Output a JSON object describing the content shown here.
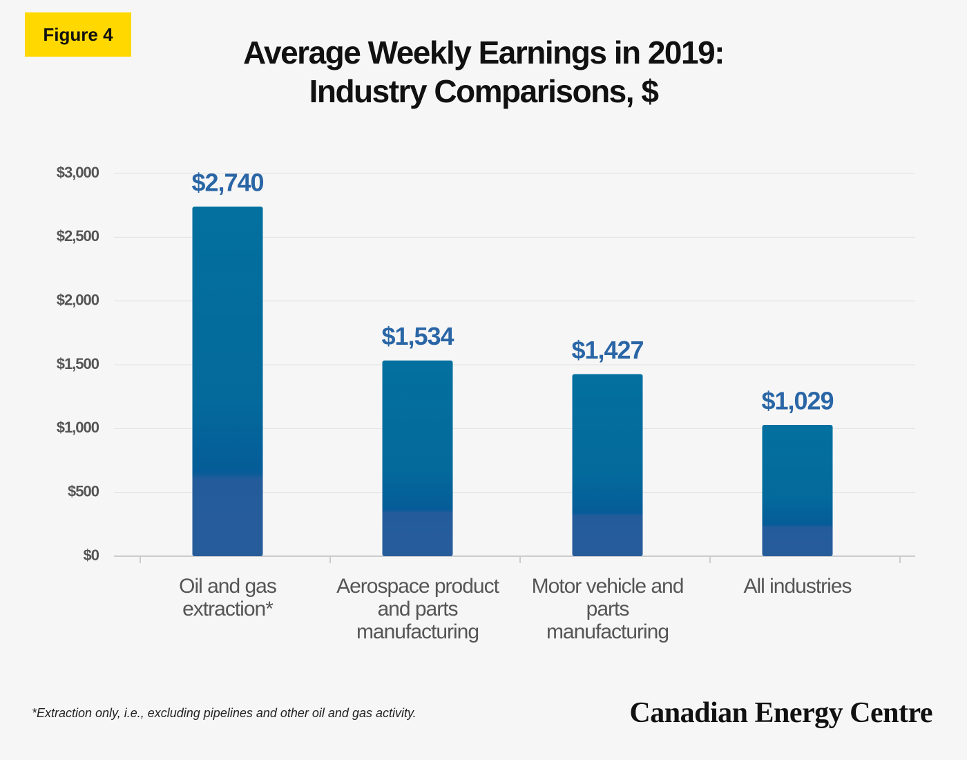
{
  "badge": "Figure 4",
  "chart_data": {
    "type": "bar",
    "title": "Average Weekly Earnings in 2019:\nIndustry Comparisons, $",
    "categories": [
      "Oil and gas extraction*",
      "Aerospace product and parts manufacturing",
      "Motor vehicle and parts manufacturing",
      "All industries"
    ],
    "values": [
      2740,
      1534,
      1427,
      1029
    ],
    "value_labels": [
      "$2,740",
      "$1,534",
      "$1,427",
      "$1,029"
    ],
    "color": "#03709f",
    "ylim": [
      0,
      3000
    ],
    "yticks": [
      {
        "value": 0,
        "label": "$0"
      },
      {
        "value": 500,
        "label": "$500"
      },
      {
        "value": 1000,
        "label": "$1,000"
      },
      {
        "value": 1500,
        "label": "$1,500"
      },
      {
        "value": 2000,
        "label": "$2,000"
      },
      {
        "value": 2500,
        "label": "$2,500"
      },
      {
        "value": 3000,
        "label": "$3,000"
      }
    ],
    "grid": true
  },
  "footnote": "*Extraction only, i.e., excluding pipelines and other oil and gas activity.",
  "brand": "Canadian Energy Centre"
}
